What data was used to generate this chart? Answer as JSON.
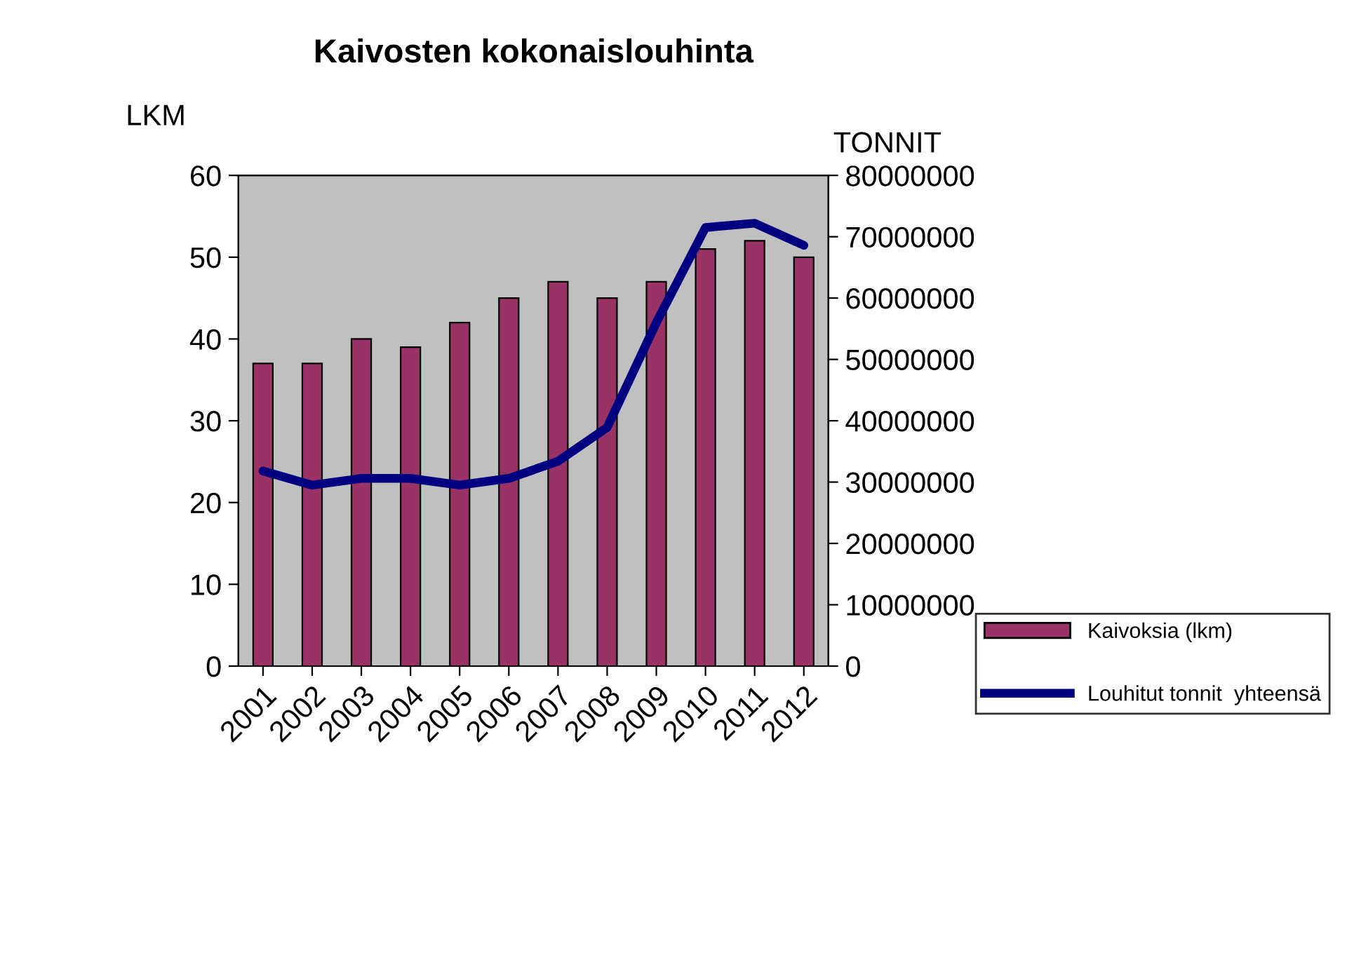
{
  "chart_data": {
    "type": "bar",
    "title": "Kaivosten kokonaislouhinta",
    "ylabel": "LKM",
    "y2label": "TONNIT",
    "categories": [
      "2001",
      "2002",
      "2003",
      "2004",
      "2005",
      "2006",
      "2007",
      "2008",
      "2009",
      "2010",
      "2011",
      "2012"
    ],
    "series": [
      {
        "name": "Kaivoksia (lkm)",
        "color": "#993366",
        "values": [
          37,
          37,
          40,
          39,
          42,
          45,
          47,
          45,
          47,
          51,
          52,
          50
        ]
      },
      {
        "name": "Louhitut tonnit  yhteensä",
        "type": "line",
        "axis": "y2",
        "color": "#000080",
        "values": [
          31800000,
          29500000,
          30600000,
          30600000,
          29500000,
          30600000,
          33400000,
          38900000,
          56000000,
          71500000,
          72200000,
          68600000
        ]
      }
    ],
    "ylim": [
      0,
      60
    ],
    "yticks": [
      0,
      10,
      20,
      30,
      40,
      50,
      60
    ],
    "y2lim": [
      0,
      80000000
    ],
    "y2ticks": [
      0,
      10000000,
      20000000,
      30000000,
      40000000,
      50000000,
      60000000,
      70000000,
      80000000
    ],
    "grid": false,
    "legend": "right",
    "marker": "none",
    "line_style": "solid"
  }
}
